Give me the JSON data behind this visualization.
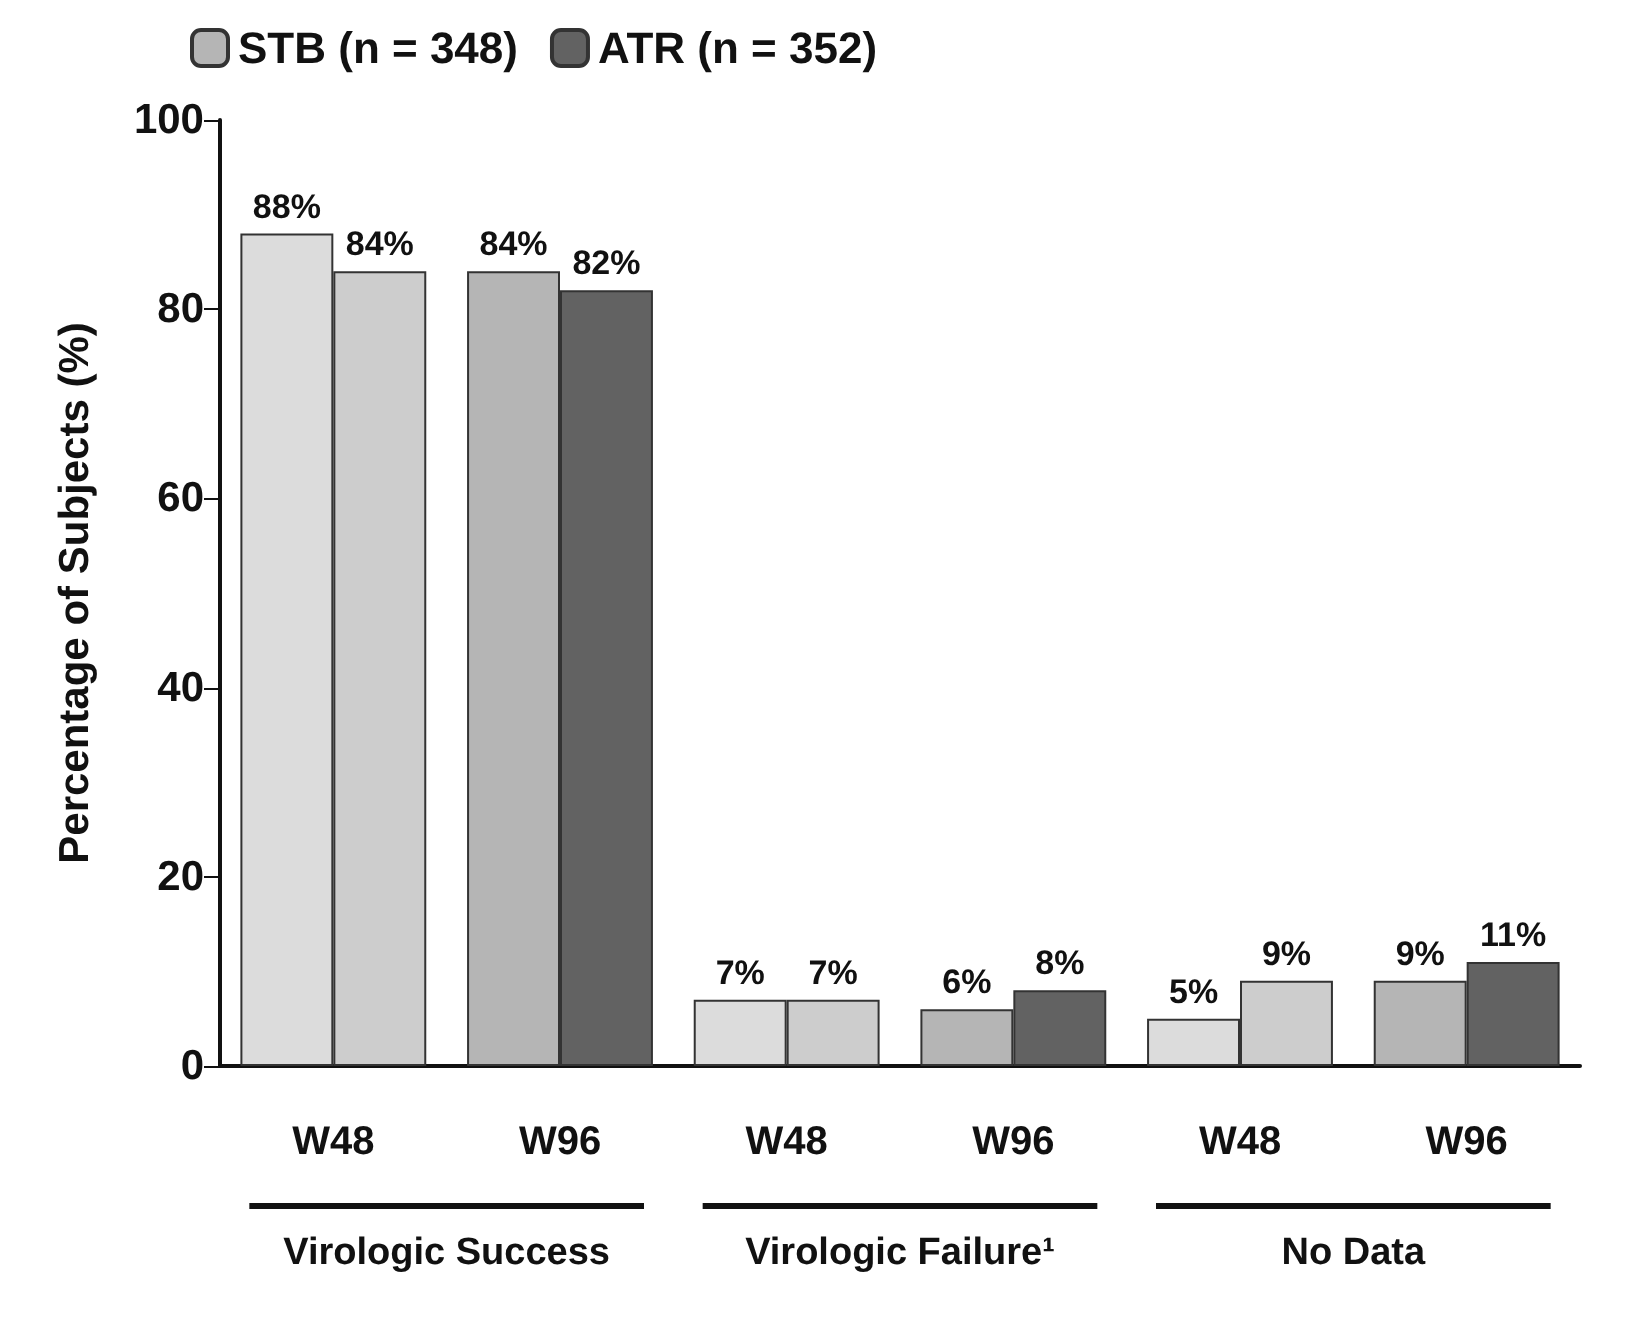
{
  "chart_data": {
    "type": "bar",
    "ylabel": "Percentage of Subjects (%)",
    "categories": [
      "W48",
      "W96",
      "W48",
      "W96",
      "W48",
      "W96"
    ],
    "series": [
      {
        "name": "STB (n = 348)",
        "color": "#b5b5b5",
        "colors": [
          "#dcdcdc",
          "#b5b5b5",
          "#dcdcdc",
          "#b5b5b5",
          "#dcdcdc",
          "#b5b5b5"
        ],
        "values": [
          88,
          84,
          7,
          6,
          5,
          9
        ],
        "value_labels": [
          "88%",
          "84%",
          "7%",
          "6%",
          "5%",
          "9%"
        ]
      },
      {
        "name": "ATR (n = 352)",
        "color": "#626262",
        "colors": [
          "#cdcdcd",
          "#626262",
          "#cdcdcd",
          "#626262",
          "#cdcdcd",
          "#626262"
        ],
        "values": [
          84,
          82,
          7,
          8,
          9,
          11
        ],
        "value_labels": [
          "84%",
          "82%",
          "7%",
          "8%",
          "9%",
          "11%"
        ]
      }
    ],
    "annotations": [
      "Virologic Success",
      "Virologic Failure¹",
      "No Data"
    ],
    "ylim": [
      0,
      100
    ],
    "yticks": [
      0,
      20,
      40,
      60,
      80,
      100
    ],
    "grid": false,
    "legend": "top left"
  }
}
